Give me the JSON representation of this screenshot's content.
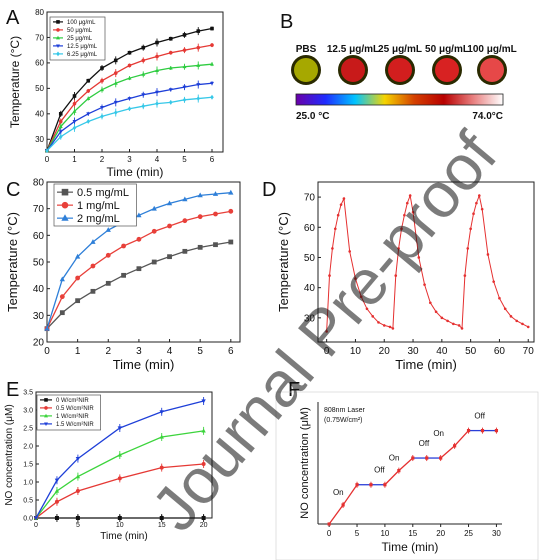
{
  "watermark": "Journal Pre-proof",
  "chart_data": [
    {
      "panel": "A",
      "type": "line",
      "xlabel": "Time (min)",
      "ylabel": "Temperature (°C)",
      "xlim": [
        0,
        6.4
      ],
      "ylim": [
        25,
        80
      ],
      "xticks": [
        "0",
        "1",
        "2",
        "3",
        "4",
        "5",
        "6"
      ],
      "yticks": [
        "30",
        "40",
        "50",
        "60",
        "70",
        "80"
      ],
      "legend_position": "top-left",
      "x": [
        0,
        0.5,
        1,
        1.5,
        2,
        2.5,
        3,
        3.5,
        4,
        4.5,
        5,
        5.5,
        6
      ],
      "series": [
        {
          "name": "100 μg/mL",
          "color": "#111111",
          "marker": "square",
          "values": [
            25.5,
            40,
            47,
            53,
            58,
            61,
            64,
            66,
            68,
            69.5,
            71,
            72.5,
            73.5
          ]
        },
        {
          "name": "50 μg/mL",
          "color": "#e53935",
          "marker": "circle",
          "values": [
            25.5,
            37,
            44,
            49,
            53,
            56,
            59,
            61,
            62.5,
            64,
            65,
            66,
            67
          ]
        },
        {
          "name": "25 μg/mL",
          "color": "#2ecc40",
          "marker": "triangle",
          "values": [
            25.5,
            35,
            41,
            46,
            49.5,
            52,
            54,
            55.5,
            57,
            58,
            58.5,
            59,
            59.5
          ]
        },
        {
          "name": "12.5 μg/mL",
          "color": "#1e3fd8",
          "marker": "triangle-down",
          "values": [
            25.5,
            33,
            37,
            40,
            42.5,
            44.5,
            46,
            47.5,
            48.5,
            49.5,
            50.5,
            51.5,
            52
          ]
        },
        {
          "name": "6.25 μg/mL",
          "color": "#36c8e8",
          "marker": "diamond",
          "values": [
            25.5,
            31,
            34.5,
            37,
            39,
            40.5,
            42,
            43,
            44,
            44.5,
            45.5,
            46,
            46.5
          ]
        }
      ]
    },
    {
      "panel": "B",
      "type": "heatmap",
      "labels": [
        "PBS",
        "12.5 μg/mL",
        "25 μg/mL",
        "50 μg/mL",
        "100 μg/mL"
      ],
      "scale_min": "25.0 °C",
      "scale_max": "74.0°C",
      "scale_colors": [
        "#6a00a8",
        "#1f2cff",
        "#00c4ff",
        "#f5d400",
        "#d44000",
        "#b80000",
        "#e88080",
        "#ffffff"
      ],
      "well_colors": [
        "#a6a800",
        "#c81a1a",
        "#d21e1e",
        "#d82222",
        "#e64848"
      ]
    },
    {
      "panel": "C",
      "type": "line",
      "xlabel": "Time (min)",
      "ylabel": "Temperature (°C)",
      "xlim": [
        0,
        6.3
      ],
      "ylim": [
        20,
        80
      ],
      "xticks": [
        "0",
        "1",
        "2",
        "3",
        "4",
        "5",
        "6"
      ],
      "yticks": [
        "20",
        "30",
        "40",
        "50",
        "60",
        "70",
        "80"
      ],
      "legend_position": "top-left",
      "x": [
        0,
        0.5,
        1,
        1.5,
        2,
        2.5,
        3,
        3.5,
        4,
        4.5,
        5,
        5.5,
        6
      ],
      "series": [
        {
          "name": "0.5 mg/mL",
          "color": "#555555",
          "marker": "square",
          "values": [
            25,
            31,
            35.5,
            39,
            42,
            45,
            47.5,
            50,
            52,
            54,
            55.5,
            56.5,
            57.5
          ]
        },
        {
          "name": "1 mg/mL",
          "color": "#e8403a",
          "marker": "circle",
          "values": [
            25,
            37,
            44,
            48.5,
            52.5,
            56,
            58.5,
            61.5,
            63.5,
            65.5,
            67,
            68,
            69
          ]
        },
        {
          "name": "2 mg/mL",
          "color": "#2e7fd8",
          "marker": "triangle",
          "values": [
            25,
            43.5,
            52,
            57.5,
            62,
            65,
            67.5,
            70,
            72,
            73.5,
            75,
            75.5,
            76
          ]
        }
      ]
    },
    {
      "panel": "D",
      "type": "line",
      "xlabel": "Time (min)",
      "ylabel": "Temperature (°C)",
      "xlim": [
        -3,
        72
      ],
      "ylim": [
        22,
        75
      ],
      "xticks": [
        "0",
        "10",
        "20",
        "30",
        "40",
        "50",
        "60",
        "70"
      ],
      "yticks": [
        "30",
        "40",
        "50",
        "60",
        "70"
      ],
      "series": [
        {
          "name": "",
          "color": "#e53030",
          "marker": "circle",
          "x": [
            0,
            1,
            2,
            3,
            4,
            5,
            6,
            8,
            10,
            12,
            14,
            16,
            18,
            20,
            22,
            23,
            24,
            25,
            26,
            27,
            28,
            29,
            30,
            32,
            34,
            36,
            38,
            40,
            42,
            44,
            46,
            47,
            48,
            49,
            50,
            51,
            52,
            53,
            54,
            56,
            58,
            60,
            62,
            64,
            66,
            68,
            70
          ],
          "values": [
            25.5,
            44,
            53,
            59.5,
            64,
            67.5,
            69.5,
            52,
            43,
            37,
            33,
            30.5,
            28.5,
            27.5,
            27,
            26.5,
            44,
            53,
            59.5,
            64,
            68,
            70.5,
            65,
            50,
            41,
            35,
            32,
            30,
            29,
            28,
            27.5,
            26.5,
            44,
            53,
            59.5,
            64.5,
            68,
            70.5,
            66,
            51,
            42,
            36.5,
            33,
            30.5,
            29,
            28,
            27
          ]
        }
      ]
    },
    {
      "panel": "E",
      "type": "line",
      "xlabel": "Time (min)",
      "ylabel": "NO concentration (μM)",
      "xlim": [
        0,
        21
      ],
      "ylim": [
        0,
        3.5
      ],
      "xticks": [
        "0",
        "5",
        "10",
        "15",
        "20"
      ],
      "yticks": [
        "0.0",
        "0.5",
        "1.0",
        "1.5",
        "2.0",
        "2.5",
        "3.0",
        "3.5"
      ],
      "legend_position": "top-left",
      "x": [
        0,
        2.5,
        5,
        10,
        15,
        20
      ],
      "series": [
        {
          "name": "0 W/cm²NIR",
          "color": "#111111",
          "marker": "square",
          "values": [
            0,
            0,
            0,
            0,
            0,
            0
          ]
        },
        {
          "name": "0.5 W/cm²NIR",
          "color": "#e53935",
          "marker": "circle",
          "values": [
            0,
            0.45,
            0.75,
            1.1,
            1.4,
            1.5
          ]
        },
        {
          "name": "1 W/cm²NIR",
          "color": "#3cd43c",
          "marker": "triangle",
          "values": [
            0,
            0.75,
            1.15,
            1.75,
            2.25,
            2.42
          ]
        },
        {
          "name": "1.5 W/cm²NIR",
          "color": "#1e3fd8",
          "marker": "triangle-down",
          "values": [
            0,
            1.05,
            1.65,
            2.5,
            2.95,
            3.25
          ]
        }
      ]
    },
    {
      "panel": "F",
      "type": "line",
      "xlabel": "Time (min)",
      "ylabel": "NO concentration (μM)",
      "xlim": [
        -2,
        31
      ],
      "ylim": [
        0,
        3.2
      ],
      "xticks": [
        "0",
        "5",
        "10",
        "15",
        "20",
        "25",
        "30"
      ],
      "annotation": "808nm Laser",
      "annotation2": "(0.75W/cm²)",
      "on_label": "On",
      "off_label": "Off",
      "on_at": [
        2,
        12,
        20
      ],
      "off_at": [
        9,
        17,
        27
      ],
      "series": [
        {
          "name": "",
          "color": "#e53030",
          "marker": "square",
          "x": [
            0,
            2.5,
            5,
            7.5,
            10,
            12.5,
            15,
            17.5,
            20,
            22.5,
            25,
            27.5,
            30
          ],
          "values": [
            0,
            0.5,
            1.03,
            1.03,
            1.03,
            1.4,
            1.73,
            1.73,
            1.73,
            2.05,
            2.45,
            2.45,
            2.45
          ],
          "segment_colors": [
            "red",
            "red",
            "blue",
            "blue",
            "red",
            "red",
            "blue",
            "blue",
            "red",
            "red",
            "blue",
            "blue"
          ]
        }
      ]
    }
  ]
}
